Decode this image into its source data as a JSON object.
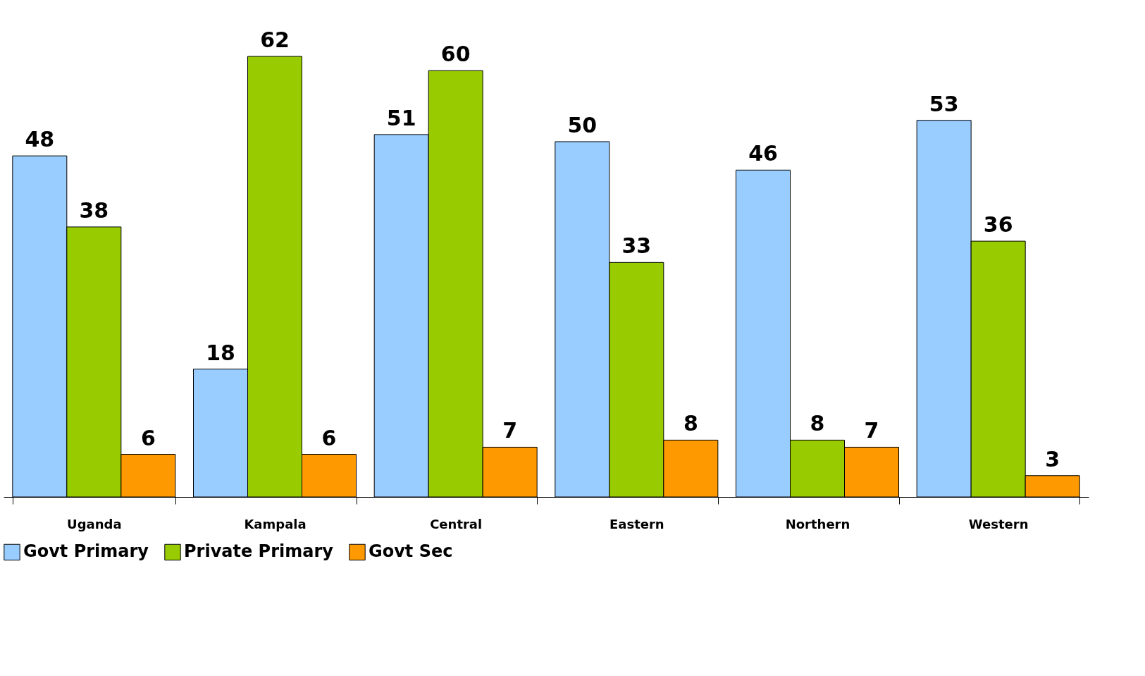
{
  "chart_data": {
    "type": "bar",
    "categories": [
      "Uganda",
      "Kampala",
      "Central",
      "Eastern",
      "Northern",
      "Western"
    ],
    "series": [
      {
        "name": "Govt Primary",
        "color": "#99ccff",
        "values": [
          48,
          18,
          51,
          50,
          46,
          53
        ]
      },
      {
        "name": "Private Primary",
        "color": "#99cc00",
        "values": [
          38,
          62,
          60,
          33,
          8,
          36
        ]
      },
      {
        "name": "Govt Sec",
        "color": "#ff9900",
        "values": [
          6,
          6,
          7,
          8,
          7,
          3
        ]
      }
    ],
    "data_labels": true,
    "legend": "bottom",
    "grid": false
  }
}
